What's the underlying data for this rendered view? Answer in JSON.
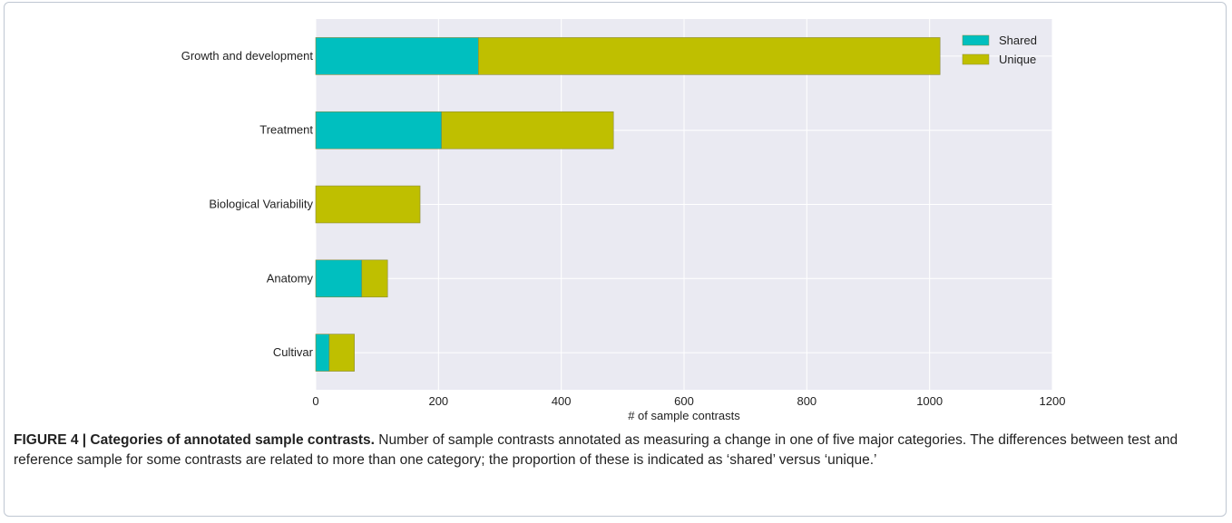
{
  "chart_data": {
    "type": "bar",
    "orientation": "horizontal",
    "stacked": true,
    "categories": [
      "Growth and development",
      "Treatment",
      "Biological Variability",
      "Anatomy",
      "Cultivar"
    ],
    "series": [
      {
        "name": "Shared",
        "values": [
          265,
          205,
          0,
          75,
          22
        ],
        "color": "#00bfbf"
      },
      {
        "name": "Unique",
        "values": [
          752,
          280,
          170,
          42,
          41
        ],
        "color": "#bfbf00"
      }
    ],
    "xlabel": "# of sample contrasts",
    "ylabel": "",
    "xlim": [
      0,
      1200
    ],
    "xticks": [
      0,
      200,
      400,
      600,
      800,
      1000,
      1200
    ],
    "grid": true,
    "legend_position": "top-right",
    "plot_background": "#eaeaf2"
  },
  "caption": {
    "title": "FIGURE 4 | Categories of annotated sample contrasts.",
    "text": " Number of sample contrasts annotated as measuring a change in one of five major categories. The differences between test and reference sample for some contrasts are related to more than one category; the proportion of these is indicated as ‘shared’ versus ‘unique.’"
  }
}
